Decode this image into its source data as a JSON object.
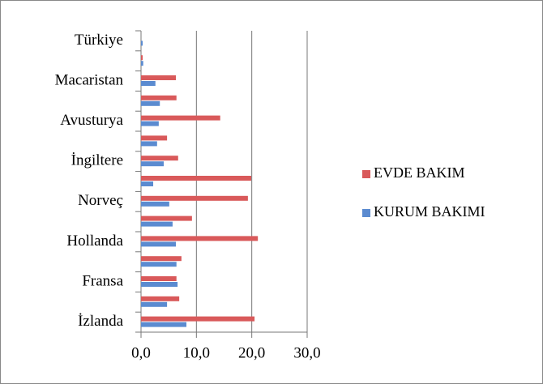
{
  "chart_data": {
    "type": "hbar",
    "categories": [
      "Türkiye",
      null,
      "Macaristan",
      null,
      "Avusturya",
      null,
      "İngiltere",
      null,
      "Norveç",
      null,
      "Hollanda",
      null,
      "Fransa",
      null,
      "İzlanda"
    ],
    "series": [
      {
        "name": "EVDE BAKIM",
        "color": "#d9595a",
        "values": [
          0,
          0.3,
          6.3,
          6.4,
          14.3,
          4.7,
          6.7,
          19.9,
          19.3,
          9.2,
          21.1,
          7.3,
          6.4,
          6.9,
          20.5
        ]
      },
      {
        "name": "KURUM BAKIMI",
        "color": "#5b8bd0",
        "values": [
          0.3,
          0.4,
          2.6,
          3.4,
          3.2,
          2.9,
          4.1,
          2.2,
          5.1,
          5.7,
          6.3,
          6.4,
          6.6,
          4.7,
          8.2
        ]
      }
    ],
    "xlim": [
      0,
      30
    ],
    "xticks": [
      {
        "value": 0,
        "label": "0,0"
      },
      {
        "value": 10,
        "label": "10,0"
      },
      {
        "value": 20,
        "label": "20,0"
      },
      {
        "value": 30,
        "label": "30,0"
      }
    ],
    "grid": true,
    "legend": "right"
  }
}
